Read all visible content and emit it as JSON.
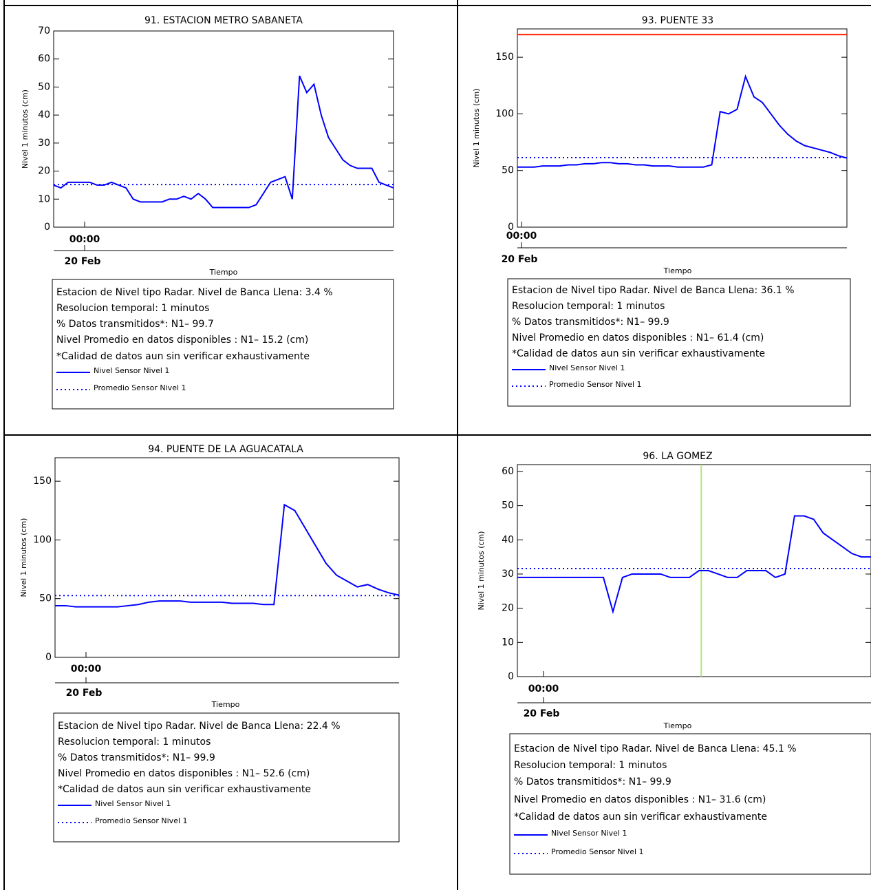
{
  "chart_data": [
    {
      "type": "line",
      "title": "91. ESTACION METRO SABANETA",
      "y_label": "Nivel 1 minutos (cm)",
      "x_label": "Tiempo",
      "xtick_label": "00:00",
      "x_date_label": "20 Feb",
      "ylim": [
        0,
        70
      ],
      "yticks": [
        0,
        10,
        20,
        30,
        40,
        50,
        60,
        70
      ],
      "series": [
        {
          "name": "Nivel Sensor Nivel 1",
          "color": "#0000ff",
          "style": "solid",
          "values": [
            15,
            14,
            16,
            16,
            16,
            16,
            15,
            15,
            16,
            15,
            14,
            10,
            9,
            9,
            9,
            9,
            10,
            10,
            11,
            10,
            12,
            10,
            7,
            7,
            7,
            7,
            7,
            7,
            8,
            12,
            16,
            17,
            18,
            10,
            54,
            48,
            51,
            40,
            32,
            28,
            24,
            22,
            21,
            21,
            21,
            16,
            15,
            14
          ]
        },
        {
          "name": "Promedio Sensor Nivel 1",
          "color": "#0000ff",
          "style": "dotted",
          "values": [
            15.2
          ]
        }
      ],
      "info": [
        "Estacion de Nivel tipo Radar. Nivel de Banca Llena:  3.4 %",
        "Resolucion temporal: 1 minutos",
        "% Datos transmitidos*: N1– 99.7",
        "Nivel Promedio en datos disponibles : N1– 15.2 (cm)",
        "*Calidad de datos aun sin verificar exhaustivamente"
      ]
    },
    {
      "type": "line",
      "title": "93. PUENTE 33",
      "y_label": "Nivel 1 minutos (cm)",
      "x_label": "Tiempo",
      "xtick_label": "00:00",
      "x_date_label": "20 Feb",
      "ylim": [
        0,
        175
      ],
      "yticks": [
        0,
        50,
        100,
        150
      ],
      "threshold": {
        "value": 170,
        "color": "#ff2200"
      },
      "series": [
        {
          "name": "Nivel Sensor Nivel 1",
          "color": "#0000ff",
          "style": "solid",
          "values": [
            53,
            53,
            53,
            54,
            54,
            54,
            55,
            55,
            56,
            56,
            57,
            57,
            56,
            56,
            55,
            55,
            54,
            54,
            54,
            53,
            53,
            53,
            53,
            55,
            102,
            100,
            104,
            133,
            115,
            110,
            100,
            90,
            82,
            76,
            72,
            70,
            68,
            66,
            63,
            61
          ]
        },
        {
          "name": "Promedio Sensor Nivel 1",
          "color": "#0000ff",
          "style": "dotted",
          "values": [
            61.4
          ]
        }
      ],
      "info": [
        "Estacion de Nivel tipo Radar. Nivel de Banca Llena: 36.1 %",
        "Resolucion temporal: 1 minutos",
        "% Datos transmitidos*: N1– 99.9",
        "Nivel Promedio en datos disponibles : N1– 61.4 (cm)",
        "*Calidad de datos aun sin verificar exhaustivamente"
      ]
    },
    {
      "type": "line",
      "title": "94. PUENTE DE LA AGUACATALA",
      "y_label": "Nivel 1 minutos (cm)",
      "x_label": "Tiempo",
      "xtick_label": "00:00",
      "x_date_label": "20 Feb",
      "ylim": [
        0,
        170
      ],
      "yticks": [
        0,
        50,
        100,
        150
      ],
      "series": [
        {
          "name": "Nivel Sensor Nivel 1",
          "color": "#0000ff",
          "style": "solid",
          "values": [
            44,
            44,
            43,
            43,
            43,
            43,
            43,
            44,
            45,
            47,
            48,
            48,
            48,
            47,
            47,
            47,
            47,
            46,
            46,
            46,
            45,
            45,
            130,
            125,
            110,
            95,
            80,
            70,
            65,
            60,
            62,
            58,
            55,
            53
          ]
        },
        {
          "name": "Promedio Sensor Nivel 1",
          "color": "#0000ff",
          "style": "dotted",
          "values": [
            52.6
          ]
        }
      ],
      "info": [
        "Estacion de Nivel tipo Radar. Nivel de Banca Llena: 22.4 %",
        "Resolucion temporal: 1 minutos",
        "% Datos transmitidos*: N1– 99.9",
        "Nivel Promedio en datos disponibles : N1– 52.6 (cm)",
        "*Calidad de datos aun sin verificar exhaustivamente"
      ]
    },
    {
      "type": "line",
      "title": "96. LA GOMEZ",
      "y_label": "Nivel 1 minutos (cm)",
      "x_label": "Tiempo",
      "xtick_label": "00:00",
      "x_date_label": "20 Feb",
      "ylim": [
        0,
        62
      ],
      "yticks": [
        0,
        10,
        20,
        30,
        40,
        50,
        60
      ],
      "series": [
        {
          "name": "Nivel Sensor Nivel 1",
          "color": "#0000ff",
          "style": "solid",
          "values": [
            29,
            29,
            29,
            29,
            29,
            29,
            29,
            29,
            29,
            29,
            19,
            29,
            30,
            30,
            30,
            30,
            29,
            29,
            29,
            31,
            31,
            30,
            29,
            29,
            31,
            31,
            31,
            29,
            30,
            47,
            47,
            46,
            42,
            40,
            38,
            36,
            35,
            35
          ]
        },
        {
          "name": "Promedio Sensor Nivel 1",
          "color": "#0000ff",
          "style": "dotted",
          "values": [
            31.6
          ]
        }
      ],
      "info": [
        "Estacion de Nivel tipo Radar. Nivel de Banca Llena: 45.1 %",
        "Resolucion temporal: 1 minutos",
        "% Datos transmitidos*: N1– 99.9",
        "Nivel Promedio en datos disponibles : N1– 31.6 (cm)",
        "*Calidad de datos aun sin verificar exhaustivamente"
      ]
    }
  ]
}
